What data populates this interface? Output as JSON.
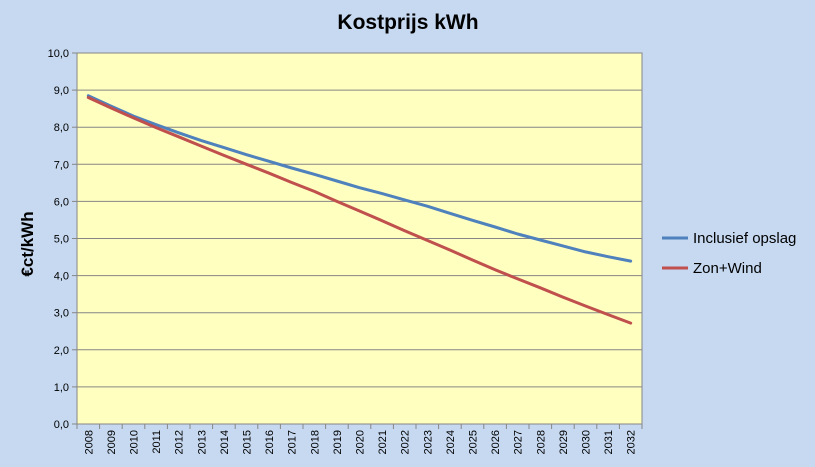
{
  "chart_data": {
    "type": "line",
    "title": "Kostprijs kWh",
    "xlabel": "",
    "ylabel": "€ct/kWh",
    "ylim": [
      0,
      10
    ],
    "grid": true,
    "legend_position": "right",
    "yticks": [
      "0,0",
      "1,0",
      "2,0",
      "3,0",
      "4,0",
      "5,0",
      "6,0",
      "7,0",
      "8,0",
      "9,0",
      "10,0"
    ],
    "categories": [
      "2008",
      "2009",
      "2010",
      "2011",
      "2012",
      "2013",
      "2014",
      "2015",
      "2016",
      "2017",
      "2018",
      "2019",
      "2020",
      "2021",
      "2022",
      "2023",
      "2024",
      "2025",
      "2026",
      "2027",
      "2028",
      "2029",
      "2030",
      "2031",
      "2032"
    ],
    "series": [
      {
        "name": "Inclusief opslag",
        "color": "#4f81bd",
        "values": [
          8.85,
          8.57,
          8.3,
          8.07,
          7.85,
          7.64,
          7.45,
          7.26,
          7.08,
          6.9,
          6.73,
          6.55,
          6.37,
          6.21,
          6.04,
          5.87,
          5.68,
          5.49,
          5.31,
          5.12,
          4.96,
          4.8,
          4.64,
          4.51,
          4.39
        ]
      },
      {
        "name": "Zon+Wind",
        "color": "#c0504d",
        "values": [
          8.8,
          8.52,
          8.25,
          7.99,
          7.74,
          7.49,
          7.24,
          7.0,
          6.76,
          6.51,
          6.27,
          6.0,
          5.74,
          5.48,
          5.21,
          4.95,
          4.69,
          4.42,
          4.16,
          3.91,
          3.67,
          3.42,
          3.18,
          2.95,
          2.72
        ]
      }
    ]
  }
}
